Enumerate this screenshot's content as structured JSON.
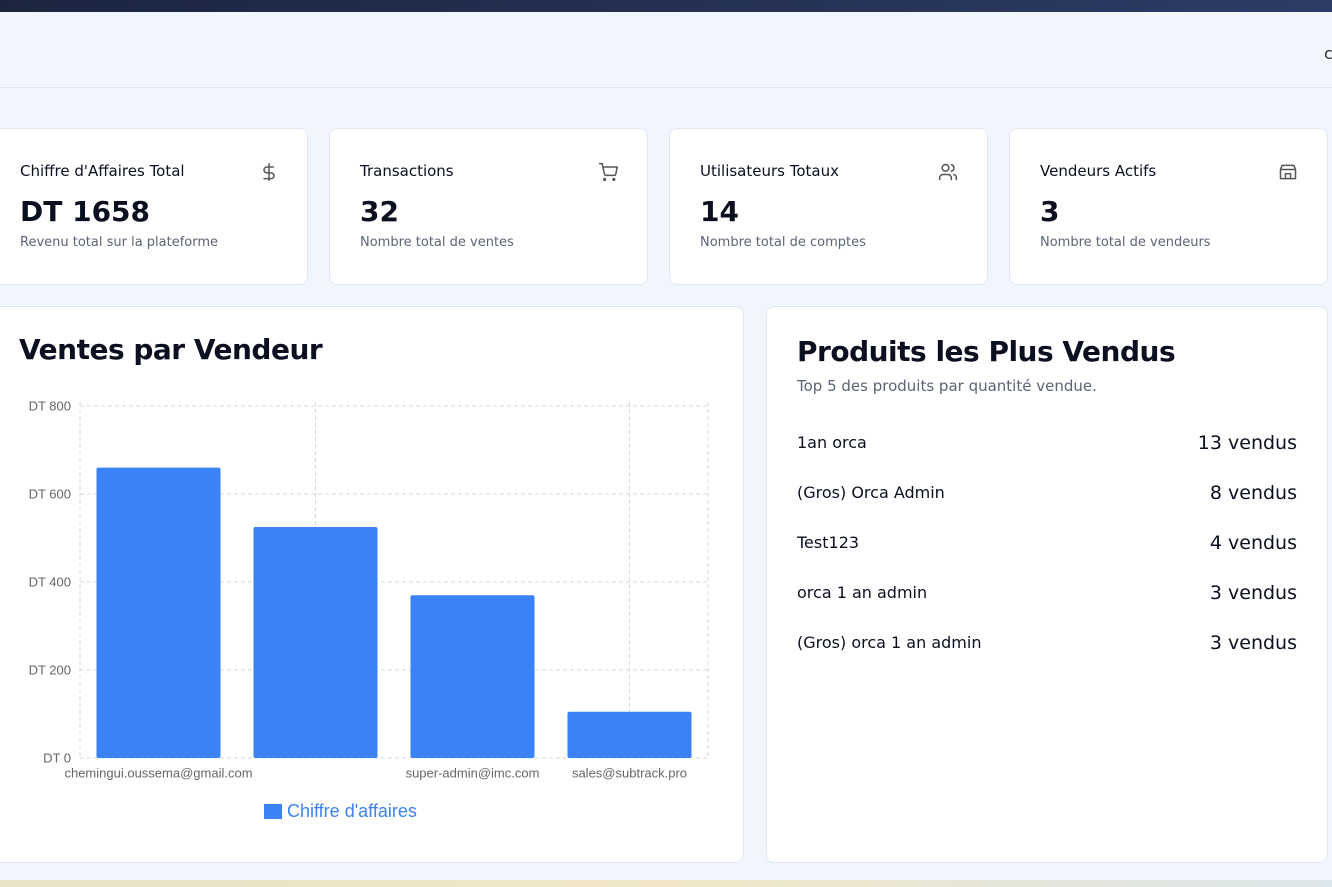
{
  "header": {
    "label": "c"
  },
  "stats": [
    {
      "title": "Chiffre d'Affaires Total",
      "value": "DT 1658",
      "description": "Revenu total sur la plateforme"
    },
    {
      "title": "Transactions",
      "value": "32",
      "description": "Nombre total de ventes"
    },
    {
      "title": "Utilisateurs Totaux",
      "value": "14",
      "description": "Nombre total de comptes"
    },
    {
      "title": "Vendeurs Actifs",
      "value": "3",
      "description": "Nombre total de vendeurs"
    }
  ],
  "chart_data": {
    "type": "bar",
    "title": "Ventes par Vendeur",
    "categories": [
      "chemingui.oussema@gmail.com",
      null,
      "super-admin@imc.com",
      "sales@subtrack.pro"
    ],
    "series": [
      {
        "name": "Chiffre d'affaires",
        "color": "#3b82f6",
        "values": [
          660,
          525,
          370,
          105
        ]
      }
    ],
    "ylim": [
      0,
      800
    ],
    "yticks": [
      {
        "value": 0,
        "label": "DT 0"
      },
      {
        "value": 200,
        "label": "DT 200"
      },
      {
        "value": 400,
        "label": "DT 400"
      },
      {
        "value": 600,
        "label": "DT 600"
      },
      {
        "value": 800,
        "label": "DT 800"
      }
    ],
    "grid": true
  },
  "products": {
    "title": "Produits les Plus Vendus",
    "subtitle": "Top 5 des produits par quantité vendue.",
    "items": [
      {
        "name": "1an orca",
        "sold": "13 vendus"
      },
      {
        "name": "(Gros) Orca Admin",
        "sold": "8 vendus"
      },
      {
        "name": "Test123",
        "sold": "4 vendus"
      },
      {
        "name": "orca 1 an admin",
        "sold": "3 vendus"
      },
      {
        "name": "(Gros) orca 1 an admin",
        "sold": "3 vendus"
      }
    ]
  }
}
